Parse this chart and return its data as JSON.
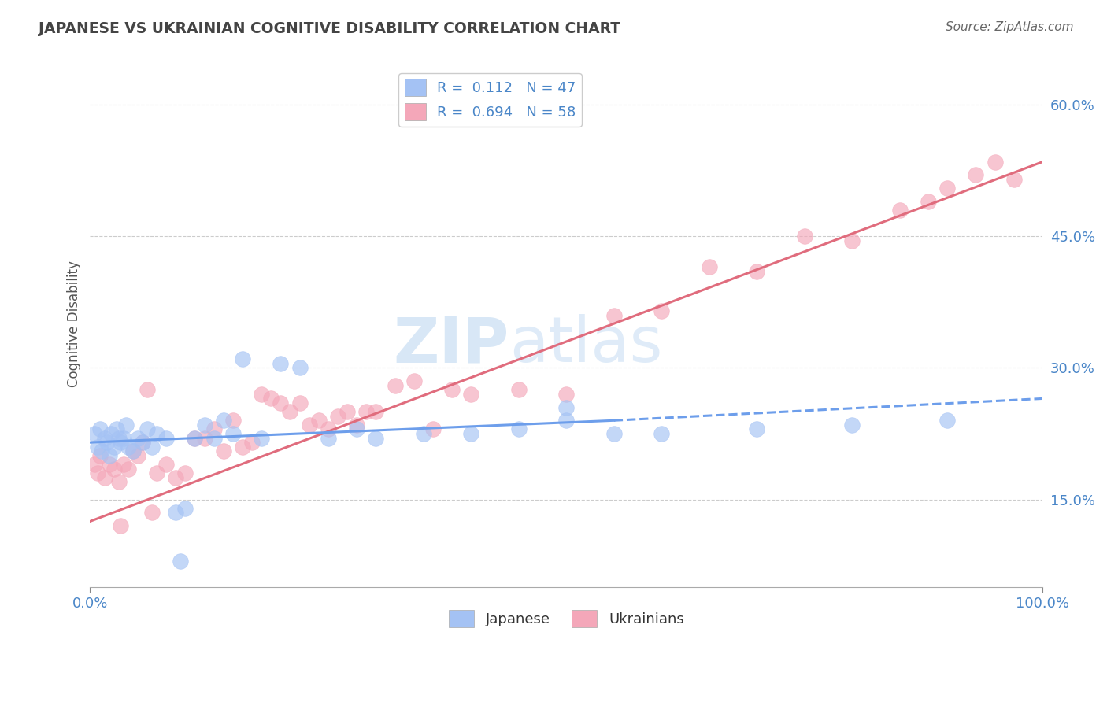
{
  "title": "JAPANESE VS UKRAINIAN COGNITIVE DISABILITY CORRELATION CHART",
  "source": "Source: ZipAtlas.com",
  "xlabel": "",
  "ylabel": "Cognitive Disability",
  "watermark_zip": "ZIP",
  "watermark_atlas": "atlas",
  "xmin": 0.0,
  "xmax": 100.0,
  "ymin": 5.0,
  "ymax": 65.0,
  "yticks": [
    15.0,
    30.0,
    45.0,
    60.0
  ],
  "ytick_labels": [
    "15.0%",
    "30.0%",
    "45.0%",
    "60.0%"
  ],
  "xtick_labels": [
    "0.0%",
    "100.0%"
  ],
  "japanese_color": "#a4c2f4",
  "ukrainian_color": "#f4a7b9",
  "japanese_line_color": "#6d9eeb",
  "ukrainian_line_color": "#e06c7d",
  "legend_line1": "R =  0.112   N = 47",
  "legend_line2": "R =  0.694   N = 58",
  "legend_label_japanese": "Japanese",
  "legend_label_ukrainian": "Ukrainians",
  "japanese_scatter_x": [
    0.5,
    0.8,
    1.0,
    1.2,
    1.5,
    1.8,
    2.0,
    2.2,
    2.5,
    2.8,
    3.0,
    3.2,
    3.5,
    3.8,
    4.0,
    4.5,
    5.0,
    5.5,
    6.0,
    6.5,
    7.0,
    8.0,
    9.0,
    10.0,
    11.0,
    12.0,
    13.0,
    14.0,
    15.0,
    16.0,
    18.0,
    20.0,
    22.0,
    25.0,
    28.0,
    30.0,
    35.0,
    40.0,
    45.0,
    50.0,
    55.0,
    60.0,
    70.0,
    80.0,
    90.0,
    50.0,
    9.5
  ],
  "japanese_scatter_y": [
    22.5,
    21.0,
    23.0,
    20.5,
    22.0,
    21.5,
    20.0,
    22.5,
    21.0,
    23.0,
    22.0,
    21.5,
    22.0,
    23.5,
    21.0,
    20.5,
    22.0,
    21.5,
    23.0,
    21.0,
    22.5,
    22.0,
    13.5,
    14.0,
    22.0,
    23.5,
    22.0,
    24.0,
    22.5,
    31.0,
    22.0,
    30.5,
    30.0,
    22.0,
    23.0,
    22.0,
    22.5,
    22.5,
    23.0,
    24.0,
    22.5,
    22.5,
    23.0,
    23.5,
    24.0,
    25.5,
    8.0
  ],
  "ukrainian_scatter_x": [
    0.5,
    0.8,
    1.0,
    1.5,
    2.0,
    2.5,
    3.0,
    3.5,
    4.0,
    4.5,
    5.0,
    5.5,
    6.0,
    7.0,
    8.0,
    9.0,
    10.0,
    11.0,
    12.0,
    13.0,
    14.0,
    15.0,
    16.0,
    17.0,
    18.0,
    19.0,
    20.0,
    21.0,
    22.0,
    23.0,
    24.0,
    25.0,
    26.0,
    27.0,
    28.0,
    29.0,
    30.0,
    32.0,
    34.0,
    36.0,
    38.0,
    40.0,
    45.0,
    50.0,
    55.0,
    60.0,
    65.0,
    70.0,
    75.0,
    80.0,
    85.0,
    88.0,
    90.0,
    93.0,
    95.0,
    97.0,
    3.2,
    6.5
  ],
  "ukrainian_scatter_y": [
    19.0,
    18.0,
    20.0,
    17.5,
    19.0,
    18.5,
    17.0,
    19.0,
    18.5,
    20.5,
    20.0,
    21.5,
    27.5,
    18.0,
    19.0,
    17.5,
    18.0,
    22.0,
    22.0,
    23.0,
    20.5,
    24.0,
    21.0,
    21.5,
    27.0,
    26.5,
    26.0,
    25.0,
    26.0,
    23.5,
    24.0,
    23.0,
    24.5,
    25.0,
    23.5,
    25.0,
    25.0,
    28.0,
    28.5,
    23.0,
    27.5,
    27.0,
    27.5,
    27.0,
    36.0,
    36.5,
    41.5,
    41.0,
    45.0,
    44.5,
    48.0,
    49.0,
    50.5,
    52.0,
    53.5,
    51.5,
    12.0,
    13.5
  ],
  "japanese_line_x0": 0.0,
  "japanese_line_x1": 55.0,
  "japanese_line_y0": 21.5,
  "japanese_line_y1": 24.0,
  "japanese_dash_x0": 55.0,
  "japanese_dash_x1": 100.0,
  "japanese_dash_y0": 24.0,
  "japanese_dash_y1": 26.5,
  "ukrainian_line_x0": 0.0,
  "ukrainian_line_x1": 100.0,
  "ukrainian_line_y0": 12.5,
  "ukrainian_line_y1": 53.5,
  "background_color": "#ffffff",
  "grid_color": "#cccccc",
  "axis_label_color": "#4a86c8",
  "title_color": "#444444"
}
